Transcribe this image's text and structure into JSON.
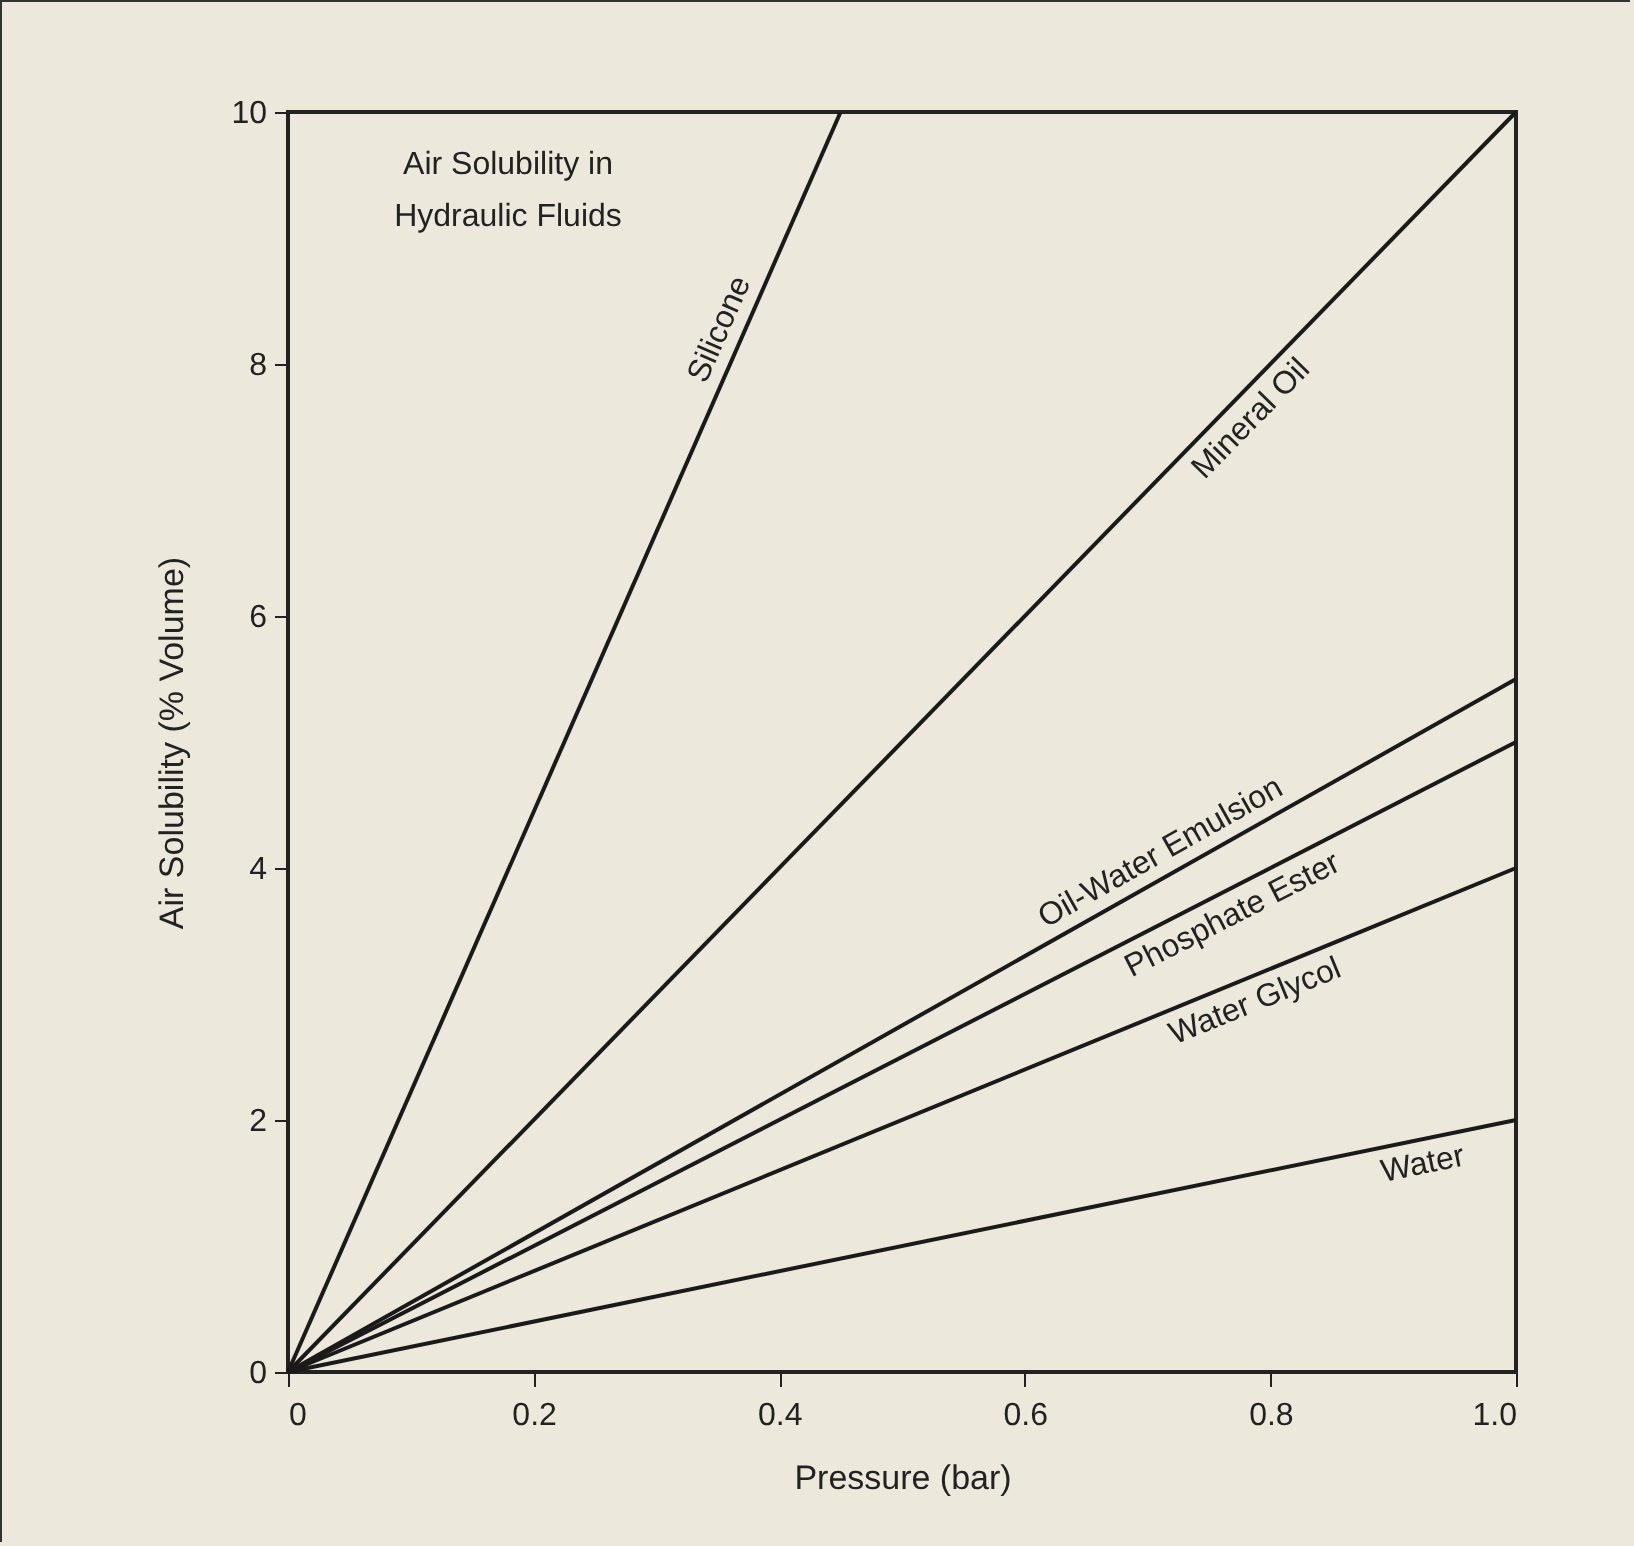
{
  "chart_data": {
    "type": "line",
    "title": "Air Solubility in Hydraulic Fluids",
    "xlabel": "Pressure (bar)",
    "ylabel": "Air Solubility (% Volume)",
    "xlim": [
      0,
      1
    ],
    "ylim": [
      0,
      10
    ],
    "xticks": [
      0,
      0.2,
      0.4,
      0.6,
      0.8,
      {
        "value": 1,
        "label": "1.0"
      }
    ],
    "yticks": [
      0,
      2,
      4,
      6,
      8,
      10
    ],
    "grid": false,
    "legend": false,
    "marker": "none",
    "line_style": "solid",
    "series": [
      {
        "name": "Silicone",
        "color": "#1a1a1a",
        "x": [
          0,
          0.45
        ],
        "values": [
          0,
          10
        ]
      },
      {
        "name": "Mineral Oil",
        "color": "#1a1a1a",
        "x": [
          0,
          1
        ],
        "values": [
          0,
          10
        ]
      },
      {
        "name": "Oil-Water Emulsion",
        "color": "#1a1a1a",
        "x": [
          0,
          1
        ],
        "values": [
          0,
          5.5
        ]
      },
      {
        "name": "Phosphate Ester",
        "color": "#1a1a1a",
        "x": [
          0,
          1
        ],
        "values": [
          0,
          5
        ]
      },
      {
        "name": "Water Glycol",
        "color": "#1a1a1a",
        "x": [
          0,
          1
        ],
        "values": [
          0,
          4
        ]
      },
      {
        "name": "Water",
        "color": "#1a1a1a",
        "x": [
          0,
          1
        ],
        "values": [
          0,
          2
        ]
      }
    ]
  }
}
